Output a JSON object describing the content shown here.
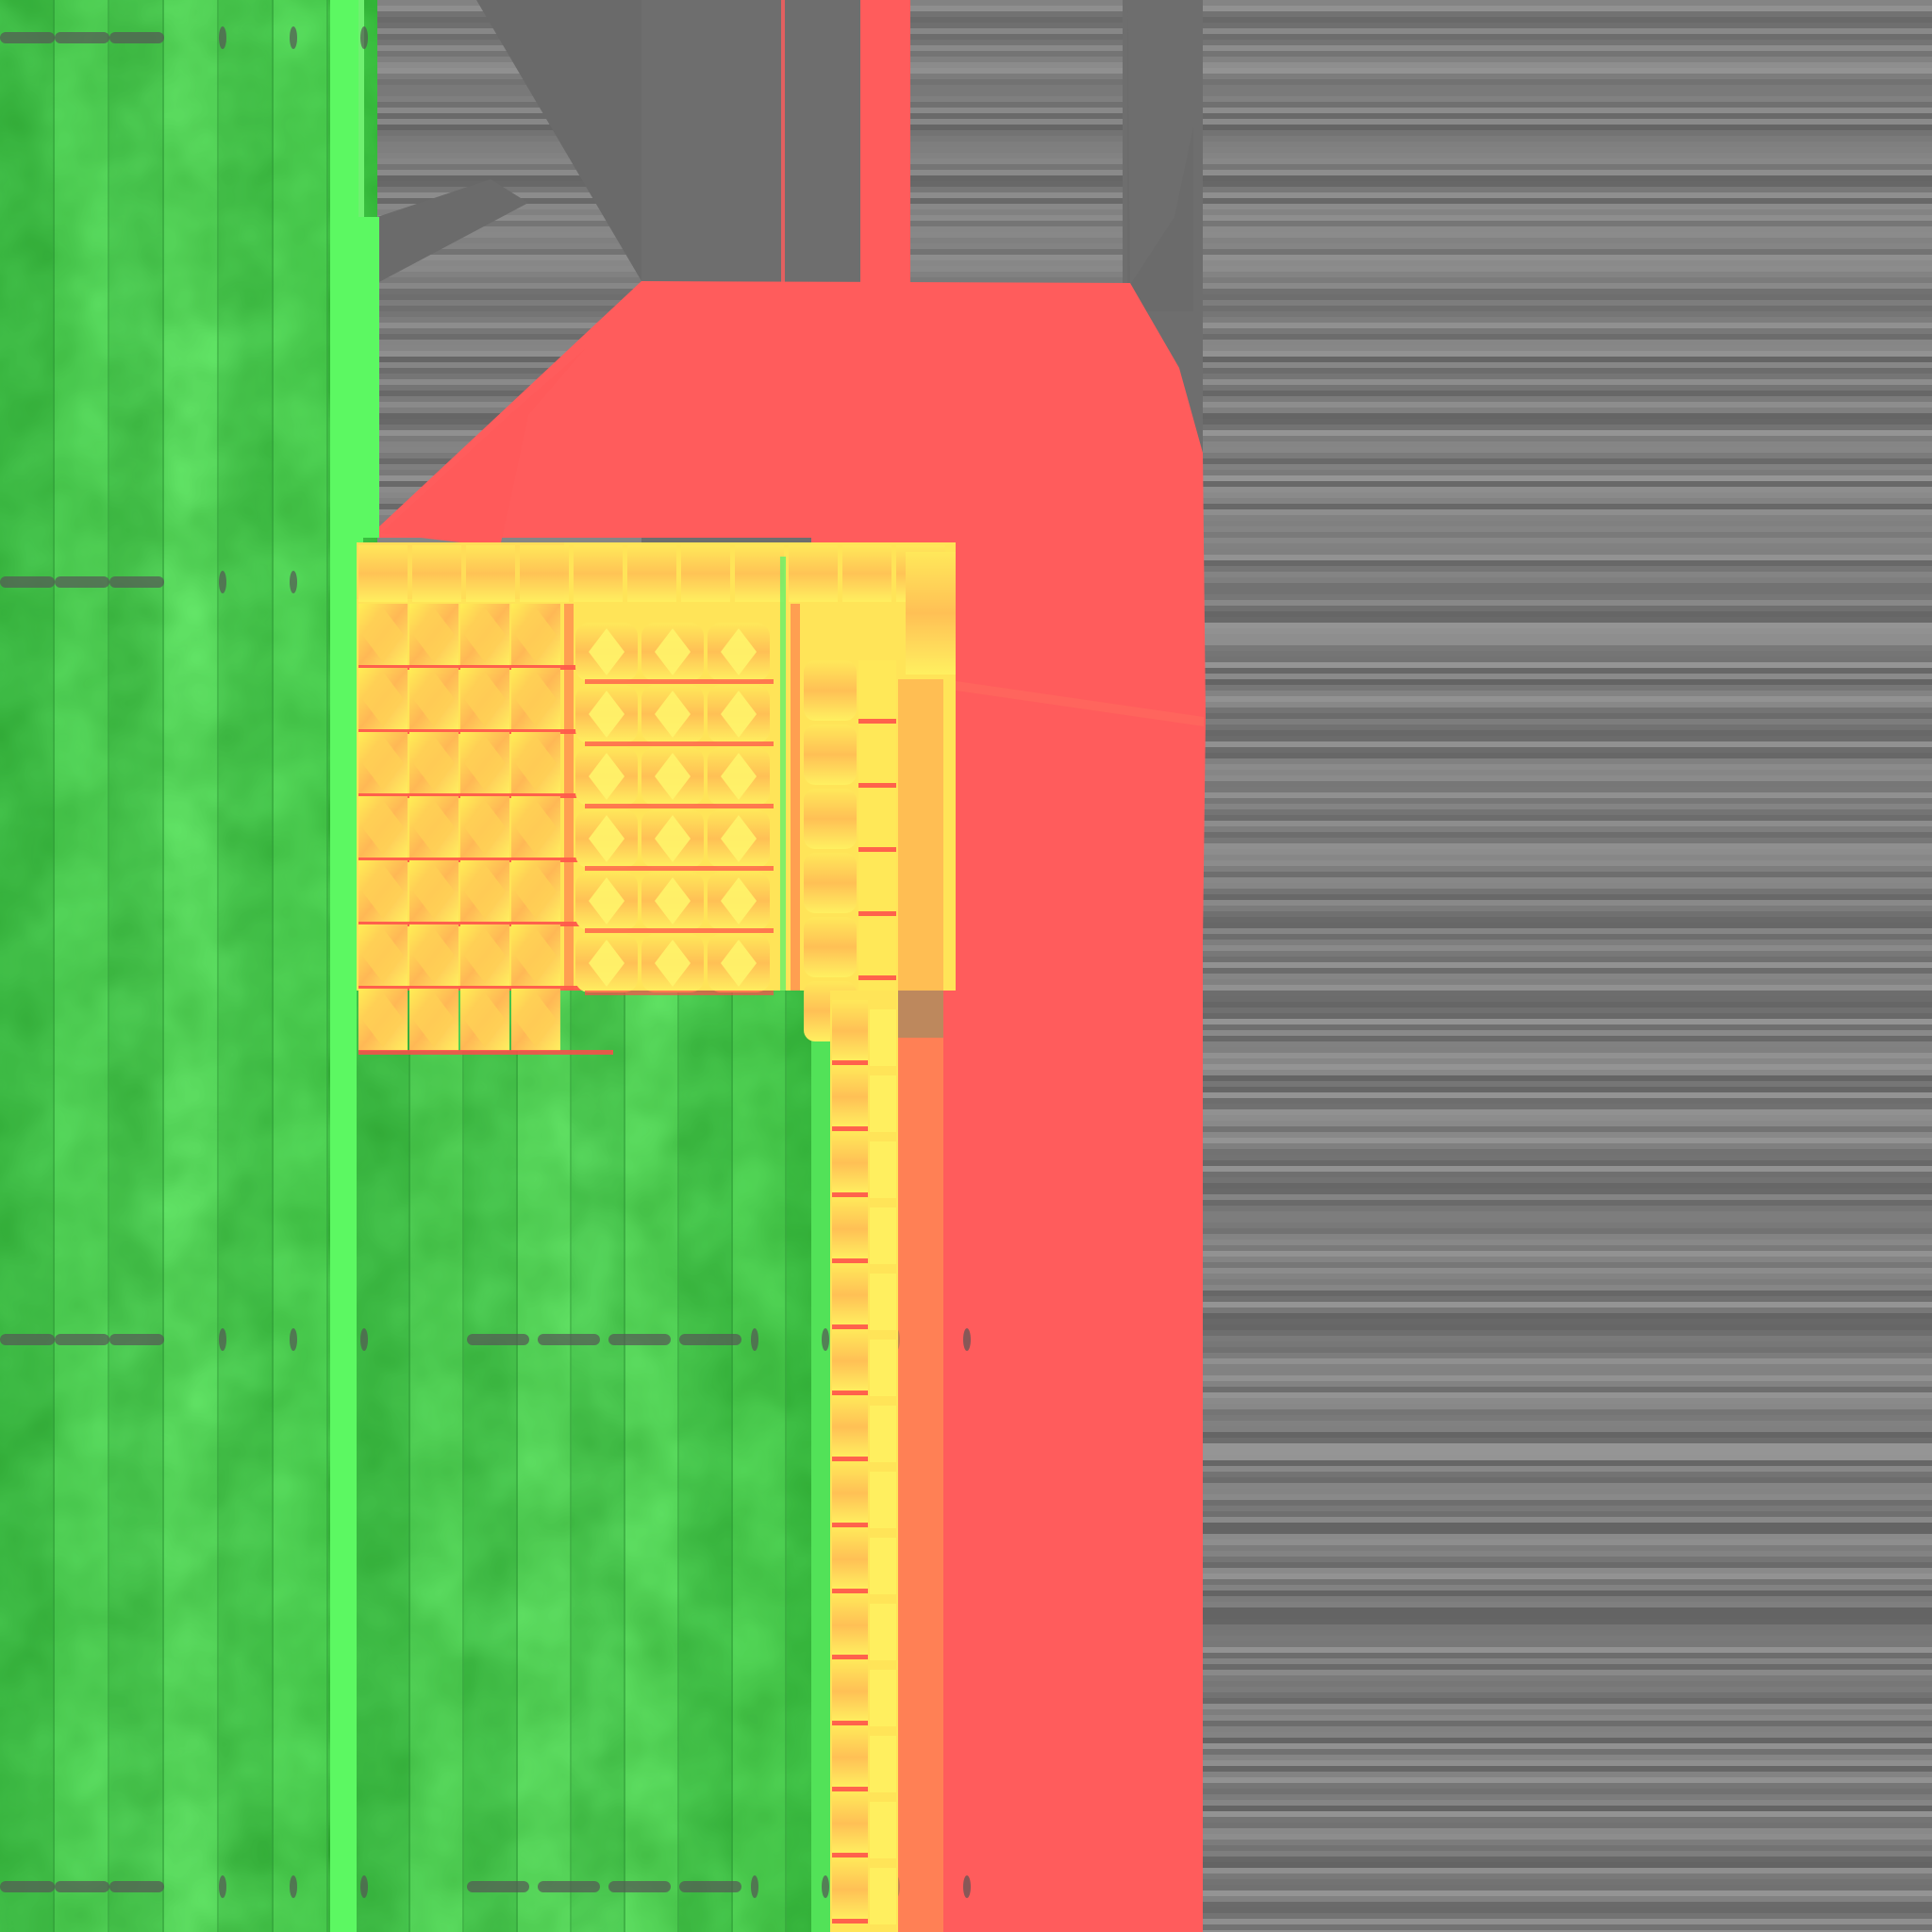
{
  "texture": {
    "palette": {
      "background_gray": "#6e6e6e",
      "stripe_gray_light": "#8a8a8a",
      "green_light": "#66f06a",
      "green_mid": "#46de4c",
      "green_dark": "#3aa844",
      "red": "#ff5c5c",
      "orange": "#ff9a50",
      "yellow": "#fff050",
      "seam_red": "#ff4a4a",
      "notch_dark": "#555555"
    },
    "regions": [
      {
        "name": "green-panel-left",
        "color_key": "green_mid"
      },
      {
        "name": "green-panel-bottom",
        "color_key": "green_mid"
      },
      {
        "name": "red-shape",
        "color_key": "red"
      },
      {
        "name": "yellow-grid-block",
        "color_key": "yellow"
      },
      {
        "name": "yellow-strip",
        "color_key": "yellow"
      },
      {
        "name": "gray-streak-background",
        "color_key": "background_gray"
      }
    ]
  }
}
